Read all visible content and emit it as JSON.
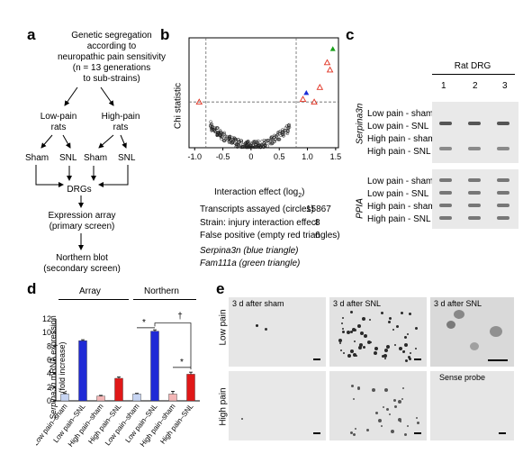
{
  "panels": {
    "a": {
      "label": "a",
      "top_text": [
        "Genetic segregation",
        "according to",
        "neuropathic pain sensitivity",
        "(n = 13 generations",
        "to sub-strains)"
      ],
      "low_pain": [
        "Low-pain",
        "rats"
      ],
      "high_pain": [
        "High-pain",
        "rats"
      ],
      "sham": "Sham",
      "snl": "SNL",
      "drgs": "DRGs",
      "expression": [
        "Expression array",
        "(primary screen)"
      ],
      "northern": [
        "Northern blot",
        "(secondary screen)"
      ]
    },
    "b": {
      "label": "b",
      "ylabel": "Chi statistic",
      "xlabel": "Interaction effect (log2)",
      "legend": [
        {
          "text": "Transcripts assayed (circles)",
          "value": "15867"
        },
        {
          "text": "Strain: injury interaction effect",
          "value": "8"
        },
        {
          "text": "False positive (empty red triangles)",
          "value": "6"
        }
      ],
      "gene1": "Serpina3n (blue triangle)",
      "gene2": "Fam111a (green triangle)"
    },
    "c": {
      "label": "c",
      "header": "Rat DRG",
      "lanes": [
        "1",
        "2",
        "3"
      ],
      "gene_top": "Serpina3n",
      "gene_bottom": "PPIA",
      "rows": [
        "Low pain - sham",
        "Low pain - SNL",
        "High pain - sham",
        "High pain - SNL"
      ]
    },
    "d": {
      "label": "d",
      "group1": "Array",
      "group2": "Northern",
      "ylabel_gene": "Serpina3n",
      "ylabel_rest": " mRNA expression",
      "ylabel_unit": "(fold increase)",
      "star": "*",
      "dagger": "†"
    },
    "e": {
      "label": "e",
      "row_labels": [
        "Low pain",
        "High pain"
      ],
      "captions": [
        "3 d after sham",
        "3 d after SNL",
        "3 d after SNL",
        "",
        "",
        "Sense probe"
      ]
    }
  },
  "chart_data": [
    {
      "type": "scatter",
      "xlabel": "Interaction effect (log2)",
      "ylabel": "Chi statistic",
      "xticks": [
        "-1.0",
        "-0.5",
        "0",
        "0.5",
        "1.0",
        "1.5"
      ],
      "xlim": [
        -1.1,
        1.55
      ],
      "grid": false,
      "series": [
        {
          "marker": "empty-red-triangle",
          "points": [
            [
              -0.92,
              5.0
            ],
            [
              0.92,
              5.3
            ],
            [
              1.12,
              5.0
            ],
            [
              1.22,
              6.6
            ],
            [
              1.35,
              9.3
            ],
            [
              1.4,
              8.5
            ]
          ]
        },
        {
          "marker": "blue-triangle",
          "points": [
            [
              0.98,
              6.0
            ]
          ]
        },
        {
          "marker": "green-triangle",
          "points": [
            [
              1.45,
              10.8
            ]
          ]
        }
      ]
    },
    {
      "type": "bar",
      "categories": [
        "Low pain–sham",
        "Low pain–SNL",
        "High pain–sham",
        "High pain–SNL",
        "Low pain–sham",
        "Low pain–SNL",
        "High pain–sham",
        "High pain–SNL"
      ],
      "yticks": [
        "0",
        "2",
        "4",
        "6",
        "8",
        "10",
        "12"
      ],
      "ylim": [
        0,
        12
      ],
      "values": [
        1.0,
        8.8,
        0.7,
        3.3,
        1.0,
        10.2,
        1.0,
        3.9
      ],
      "errors": [
        0.1,
        0.15,
        0.1,
        0.2,
        0.1,
        0.2,
        0.4,
        0.3
      ],
      "colors": [
        "#c6d4f2",
        "#1f2ad6",
        "#f3b6b6",
        "#e01818",
        "#c6d4f2",
        "#1f2ad6",
        "#f3b6b6",
        "#e01818"
      ]
    }
  ]
}
